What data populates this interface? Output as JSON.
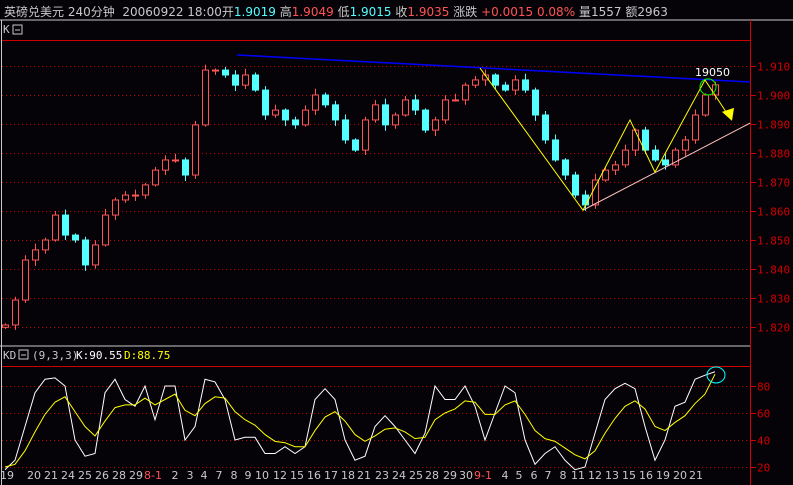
{
  "header": {
    "symbol": "英磅兑美元",
    "period": "240分钟",
    "datetime": "20060922 18:00",
    "open_label": "开",
    "open": "1.9019",
    "high_label": "高",
    "high": "1.9049",
    "low_label": "低",
    "low": "1.9015",
    "close_label": "收",
    "close": "1.9035",
    "change_label": "涨跌",
    "change": "+0.0015",
    "change_pct": "0.08%",
    "volume_label": "量",
    "volume": "1557",
    "amount_label": "额",
    "amount": "2963"
  },
  "colors": {
    "up": "#ff5454",
    "down": "#54ffff",
    "grid": "#c00000",
    "K": "#ffffff",
    "D": "#ffff00",
    "resistance": "#0000ff",
    "zigzag": "#ffff00",
    "support": "#ffc0c0"
  },
  "chart_data": [
    {
      "type": "candlestick",
      "panel_label": "K",
      "ylim": [
        1.815,
        1.9175
      ],
      "yticks": [
        "1.910",
        "1.900",
        "1.890",
        "1.880",
        "1.870",
        "1.860",
        "1.850",
        "1.840",
        "1.830",
        "1.820"
      ],
      "ytick_values": [
        1.91,
        1.9,
        1.89,
        1.88,
        1.87,
        1.86,
        1.85,
        1.84,
        1.83,
        1.82
      ],
      "grid": true,
      "closes": [
        1.8207,
        1.8293,
        1.8431,
        1.8466,
        1.85,
        1.8586,
        1.8517,
        1.85,
        1.8414,
        1.8483,
        1.8586,
        1.8638,
        1.8655,
        1.8655,
        1.869,
        1.8741,
        1.8776,
        1.8776,
        1.8724,
        1.8897,
        1.9086,
        1.9086,
        1.9069,
        1.9034,
        1.9069,
        1.9017,
        1.8931,
        1.8948,
        1.8914,
        1.8897,
        1.8948,
        1.9,
        1.8966,
        1.8914,
        1.8845,
        1.881,
        1.8914,
        1.8966,
        1.8897,
        1.8931,
        1.8983,
        1.8948,
        1.8879,
        1.8914,
        1.8983,
        1.8983,
        1.9034,
        1.9052,
        1.9069,
        1.9034,
        1.9017,
        1.9052,
        1.9017,
        1.8931,
        1.8845,
        1.8776,
        1.8724,
        1.8655,
        1.8621,
        1.8707,
        1.8741,
        1.8759,
        1.881,
        1.8879,
        1.881,
        1.8776,
        1.8759,
        1.881,
        1.8845,
        1.8931,
        1.9,
        1.9035
      ],
      "annotation": "19050",
      "resistance_line": [
        [
          23.2,
          1.9138
        ],
        [
          74.5,
          1.9045
        ]
      ],
      "zigzag": [
        [
          47.5,
          1.9093
        ],
        [
          57.8,
          1.8603
        ],
        [
          62.5,
          1.8914
        ],
        [
          65,
          1.8734
        ],
        [
          70,
          1.9052
        ],
        [
          72.5,
          1.8921
        ]
      ],
      "support_line": [
        [
          57.8,
          1.8603
        ],
        [
          74.5,
          1.8903
        ]
      ]
    },
    {
      "type": "line",
      "panel_label": "KD",
      "params": "(9,3,3)",
      "K_label": "K:90.55",
      "D_label": "D:88.75",
      "ylim": [
        14,
        100
      ],
      "yticks": [
        "80",
        "60",
        "40",
        "20"
      ],
      "ytick_values": [
        80,
        60,
        40,
        20
      ],
      "series": [
        {
          "name": "K",
          "values": [
            18,
            25,
            50,
            75,
            85,
            86,
            80,
            40,
            28,
            30,
            75,
            85,
            70,
            65,
            80,
            55,
            80,
            80,
            40,
            50,
            85,
            83,
            70,
            40,
            42,
            42,
            30,
            30,
            35,
            30,
            35,
            70,
            78,
            70,
            40,
            25,
            28,
            50,
            58,
            50,
            40,
            30,
            45,
            80,
            70,
            70,
            80,
            65,
            40,
            60,
            80,
            75,
            40,
            22,
            30,
            35,
            25,
            18,
            20,
            45,
            70,
            78,
            82,
            78,
            50,
            25,
            40,
            65,
            68,
            85,
            88,
            90.55
          ]
        },
        {
          "name": "D",
          "values": [
            20,
            22,
            32,
            46,
            59,
            68,
            72,
            61,
            50,
            43,
            54,
            64,
            66,
            66,
            71,
            66,
            70,
            74,
            62,
            58,
            67,
            72,
            71,
            61,
            55,
            51,
            44,
            39,
            38,
            35,
            35,
            47,
            57,
            61,
            54,
            44,
            39,
            43,
            48,
            49,
            46,
            41,
            42,
            55,
            60,
            63,
            69,
            68,
            59,
            59,
            66,
            69,
            59,
            47,
            41,
            39,
            34,
            29,
            26,
            32,
            45,
            56,
            65,
            69,
            63,
            50,
            47,
            53,
            58,
            67,
            74,
            88.75
          ]
        }
      ],
      "x_ticks": [
        {
          "label": "19",
          "i": 0
        },
        {
          "label": "20",
          "i": 2.7
        },
        {
          "label": "21",
          "i": 4.4
        },
        {
          "label": "24",
          "i": 6.1
        },
        {
          "label": "25",
          "i": 7.8
        },
        {
          "label": "26",
          "i": 9.5
        },
        {
          "label": "28",
          "i": 11.2
        },
        {
          "label": "29",
          "i": 12.9
        },
        {
          "label": "8-1",
          "i": 14.6,
          "month": true
        },
        {
          "label": "2",
          "i": 16.8
        },
        {
          "label": "3",
          "i": 18.3
        },
        {
          "label": "4",
          "i": 19.7
        },
        {
          "label": "7",
          "i": 21.2
        },
        {
          "label": "8",
          "i": 22.7
        },
        {
          "label": "9",
          "i": 24.1
        },
        {
          "label": "10",
          "i": 25.5
        },
        {
          "label": "12",
          "i": 27.3
        },
        {
          "label": "15",
          "i": 29
        },
        {
          "label": "16",
          "i": 30.7
        },
        {
          "label": "17",
          "i": 32.4
        },
        {
          "label": "18",
          "i": 34.1
        },
        {
          "label": "21",
          "i": 35.7
        },
        {
          "label": "23",
          "i": 37.5
        },
        {
          "label": "24",
          "i": 39.2
        },
        {
          "label": "25",
          "i": 40.9
        },
        {
          "label": "28",
          "i": 42.5
        },
        {
          "label": "29",
          "i": 44.3
        },
        {
          "label": "30",
          "i": 45.9
        },
        {
          "label": "9-1",
          "i": 47.6,
          "month": true
        },
        {
          "label": "4",
          "i": 49.8
        },
        {
          "label": "5",
          "i": 51.2
        },
        {
          "label": "6",
          "i": 52.7
        },
        {
          "label": "7",
          "i": 54.1
        },
        {
          "label": "8",
          "i": 55.6
        },
        {
          "label": "11",
          "i": 57.1
        },
        {
          "label": "12",
          "i": 58.8
        },
        {
          "label": "13",
          "i": 60.5
        },
        {
          "label": "15",
          "i": 62.2
        },
        {
          "label": "16",
          "i": 63.9
        },
        {
          "label": "19",
          "i": 65.6
        },
        {
          "label": "20",
          "i": 67.3
        },
        {
          "label": "21",
          "i": 68.9
        }
      ]
    }
  ]
}
